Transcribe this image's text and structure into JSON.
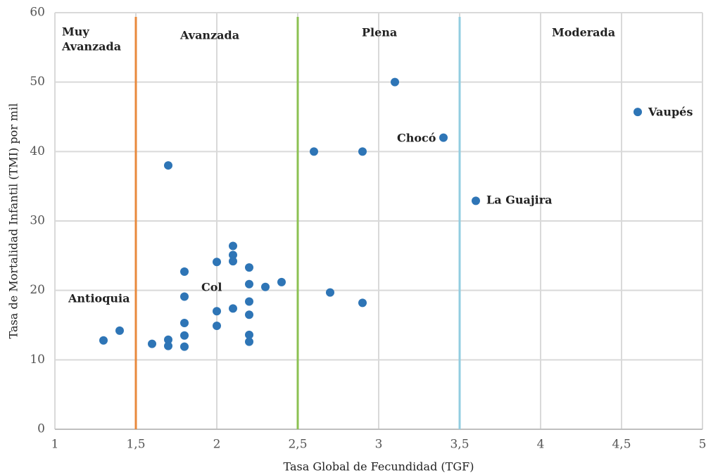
{
  "chart_data": {
    "type": "scatter",
    "x_label": "Tasa Global de Fecundidad (TGF)",
    "y_label": "Tasa de Mortalidad Infantil (TMI) por mil",
    "color": "#2e75b6",
    "x": [
      1.3,
      1.4,
      1.6,
      1.7,
      1.7,
      1.7,
      1.8,
      1.8,
      1.8,
      1.8,
      1.8,
      2.0,
      2.0,
      2.0,
      2.1,
      2.1,
      2.1,
      2.1,
      2.2,
      2.2,
      2.2,
      2.2,
      2.2,
      2.2,
      2.3,
      2.4,
      2.7,
      2.6,
      2.9,
      2.9,
      3.1,
      3.4,
      3.6,
      4.6
    ],
    "values": [
      12.8,
      14.2,
      12.3,
      38.0,
      12.9,
      12.0,
      22.7,
      19.1,
      15.3,
      13.5,
      11.9,
      24.1,
      17.0,
      14.9,
      26.4,
      25.1,
      24.2,
      17.4,
      23.3,
      20.9,
      18.4,
      16.5,
      13.6,
      12.6,
      20.5,
      21.2,
      19.7,
      40.0,
      40.0,
      18.2,
      50.0,
      42.0,
      32.9,
      45.7
    ],
    "xlim": [
      1,
      5
    ],
    "xticks": [
      1,
      {
        "value": 1.5,
        "label": "1,5"
      },
      2,
      {
        "value": 2.5,
        "label": "2,5"
      },
      3,
      {
        "value": 3.5,
        "label": "3,5"
      },
      4,
      {
        "value": 4.5,
        "label": "4,5"
      },
      5
    ],
    "ylim": [
      0,
      60
    ],
    "yticks": [
      0,
      10,
      20,
      30,
      40,
      50,
      60
    ],
    "grid": true,
    "thresholds": [
      {
        "value": 1.5,
        "color": "#e8893c"
      },
      {
        "value": 2.5,
        "color": "#8cc152"
      },
      {
        "value": 3.5,
        "color": "#92cde0"
      }
    ],
    "regions": [
      [
        "Muy",
        "Avanzada"
      ],
      [
        "Avanzada"
      ],
      [
        "Plena"
      ],
      [
        "Moderada"
      ]
    ],
    "annotations": [
      "Antioquia",
      "Col",
      "Chocó",
      "Vaupés",
      "La Guajira"
    ]
  }
}
